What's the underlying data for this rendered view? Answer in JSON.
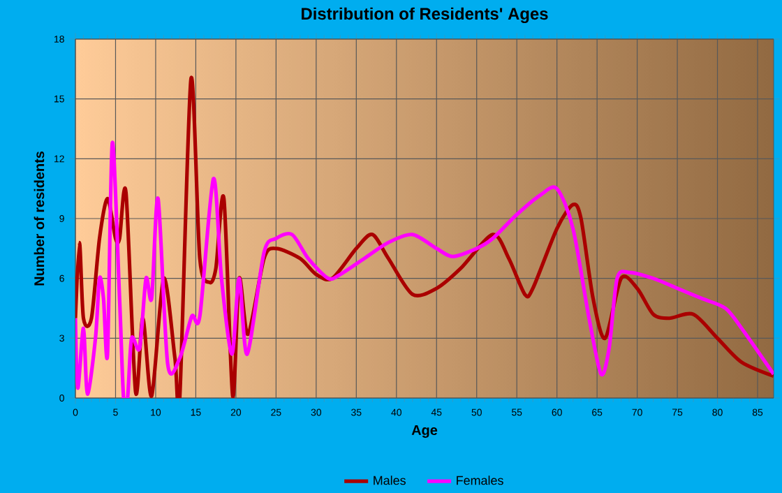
{
  "chart_data": {
    "type": "line",
    "title": "Distribution of Residents' Ages",
    "xlabel": "Age",
    "ylabel": "Number of residents",
    "xlim": [
      0,
      87
    ],
    "xticks": [
      0,
      5,
      10,
      15,
      20,
      25,
      30,
      35,
      40,
      45,
      50,
      55,
      60,
      65,
      70,
      75,
      80,
      85
    ],
    "ylim": [
      0,
      18
    ],
    "yticks": [
      0,
      3,
      6,
      9,
      12,
      15,
      18
    ],
    "grid": true,
    "legend": "bottom",
    "series": [
      {
        "name": "Males",
        "color": "#aa0000",
        "x": [
          0,
          0.5,
          1,
          2,
          3,
          4,
          5,
          5.5,
          6.3,
          7.5,
          8.4,
          9.5,
          11,
          12.4,
          13,
          14.4,
          15.5,
          16.7,
          17.5,
          18.5,
          19.6,
          20.4,
          21.5,
          23.5,
          25,
          28,
          30,
          32,
          35,
          37,
          39,
          42,
          45,
          48,
          52,
          54,
          56,
          57,
          60,
          62,
          63,
          64.5,
          66,
          68,
          70,
          72,
          74,
          77,
          80,
          83,
          87
        ],
        "values": [
          4,
          7.8,
          4,
          4,
          8,
          10,
          8,
          8,
          10.3,
          0.3,
          4,
          0.1,
          6,
          2,
          0,
          16,
          7,
          5.8,
          6.5,
          10,
          0.1,
          6,
          3.2,
          7,
          7.5,
          7,
          6.2,
          6,
          7.5,
          8.2,
          7,
          5.2,
          5.5,
          6.5,
          8.2,
          7,
          5.2,
          5.5,
          8.5,
          9.7,
          9,
          5,
          3,
          6,
          5.5,
          4.2,
          4,
          4.2,
          3,
          1.8,
          1.1
        ]
      },
      {
        "name": "Females",
        "color": "#ff00ff",
        "x": [
          0,
          0.3,
          1,
          1.5,
          2.5,
          3,
          3.5,
          4,
          4.6,
          5.5,
          6,
          6.5,
          7,
          8,
          8.8,
          9.5,
          10.3,
          11.5,
          13,
          14.5,
          15.5,
          17.2,
          18.2,
          19.5,
          20.4,
          21.4,
          23.5,
          25,
          27,
          29,
          31.5,
          33,
          36,
          39,
          42,
          45,
          47,
          50,
          52,
          55,
          58,
          60,
          62,
          64,
          65.5,
          66.5,
          67.5,
          69,
          72,
          75,
          78,
          81,
          83,
          87
        ],
        "values": [
          4,
          0.5,
          3.5,
          0.2,
          3,
          6,
          5,
          2.2,
          12.8,
          5,
          0,
          0,
          3,
          2.5,
          6,
          5,
          10,
          1.7,
          2,
          4.1,
          4.1,
          11,
          6,
          2.2,
          6,
          2.2,
          7.3,
          8,
          8.2,
          7,
          6,
          6.2,
          7,
          7.8,
          8.2,
          7.5,
          7.1,
          7.5,
          8,
          9.2,
          10.2,
          10.5,
          8.5,
          4,
          1.2,
          2.5,
          6,
          6.3,
          6,
          5.5,
          5,
          4.5,
          3.5,
          1.2
        ]
      }
    ]
  }
}
